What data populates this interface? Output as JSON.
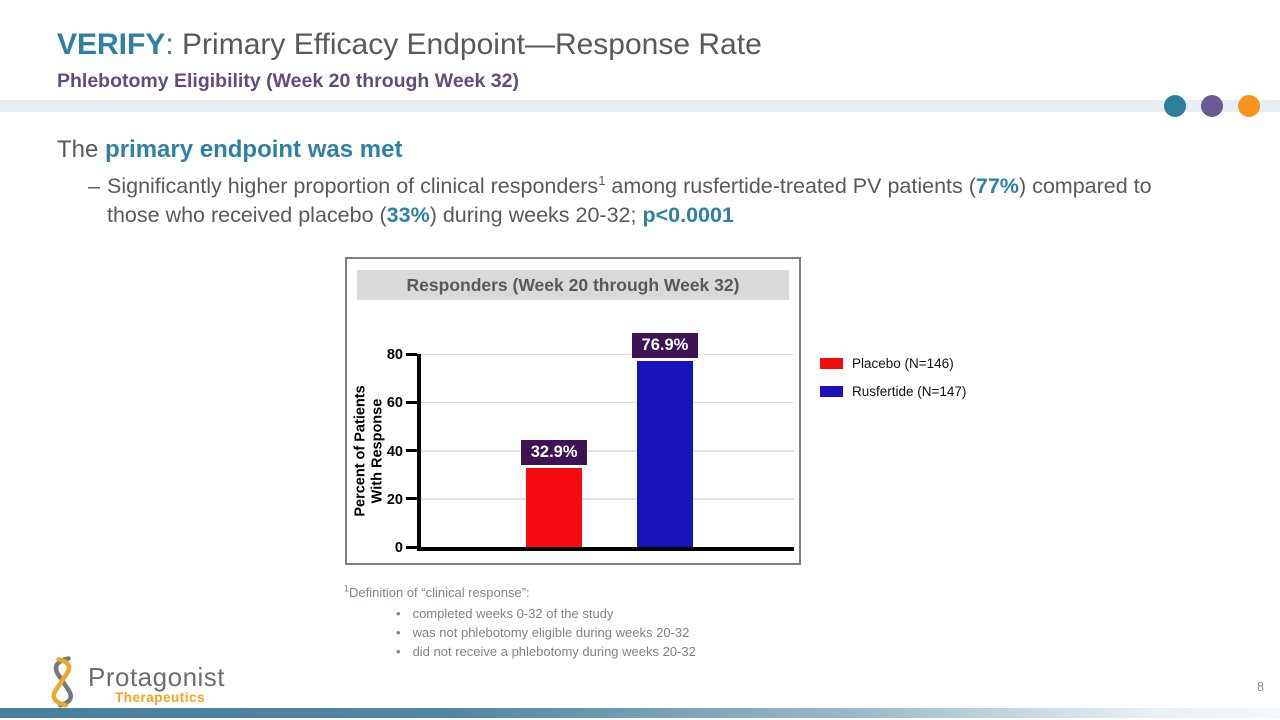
{
  "slide": {
    "title_highlight": "VERIFY",
    "title_colon": ":",
    "title_rest": " Primary Efficacy Endpoint—Response Rate",
    "subtitle": "Phlebotomy Eligibility (Week 20 through Week 32)",
    "page_number": "8"
  },
  "body": {
    "lead_plain": "The ",
    "lead_accent": "primary endpoint was met",
    "bullet_dash": "–",
    "bullet_segments": [
      {
        "text": "Significantly higher proportion of clinical responders"
      },
      {
        "text": "1",
        "sup": true
      },
      {
        "text": " among rusfertide-treated PV patients ("
      },
      {
        "text": "77%",
        "accent": true
      },
      {
        "text": ") compared to those who received placebo ("
      },
      {
        "text": "33%",
        "accent": true
      },
      {
        "text": ") during weeks 20-32; "
      },
      {
        "text": "p<0.0001",
        "accent": true
      }
    ]
  },
  "chart_data": {
    "type": "bar",
    "title": "Responders (Week 20 through Week 32)",
    "categories": [
      "Placebo",
      "Rusfertide"
    ],
    "values": [
      32.9,
      76.9
    ],
    "value_labels": [
      "32.9%",
      "76.9%"
    ],
    "bar_colors": [
      "#f40b10",
      "#1713bd"
    ],
    "value_label_bg": "#3f1254",
    "ylabel_lines": [
      "Percent of Patients",
      "With Response"
    ],
    "yticks": [
      0,
      20,
      40,
      60,
      80
    ],
    "ylim": [
      0,
      80
    ],
    "grid": true,
    "legend_position": "right",
    "legend": [
      {
        "label": "Placebo (N=146)",
        "color": "#f40b10"
      },
      {
        "label": "Rusfertide (N=147)",
        "color": "#1713bd"
      }
    ]
  },
  "footnote": {
    "sup": "1",
    "lead": "Definition of “clinical response”:",
    "bullets": [
      "completed weeks 0-32 of the study",
      "was not phlebotomy eligible during weeks 20-32",
      "did not receive a phlebotomy during weeks 20-32"
    ]
  },
  "logo": {
    "name": "Protagonist",
    "sub": "Therapeutics"
  },
  "colors": {
    "accent_teal": "#2e80a6",
    "subtitle_purple": "#604c7d",
    "text_gray": "#595959",
    "footnote_gray": "#7f8388",
    "dot_teal": "#2d7f9e",
    "dot_purple": "#6b5b95",
    "dot_orange": "#f7941d",
    "band_blue": "#e8eff4",
    "footer_teal": "#47809f"
  }
}
